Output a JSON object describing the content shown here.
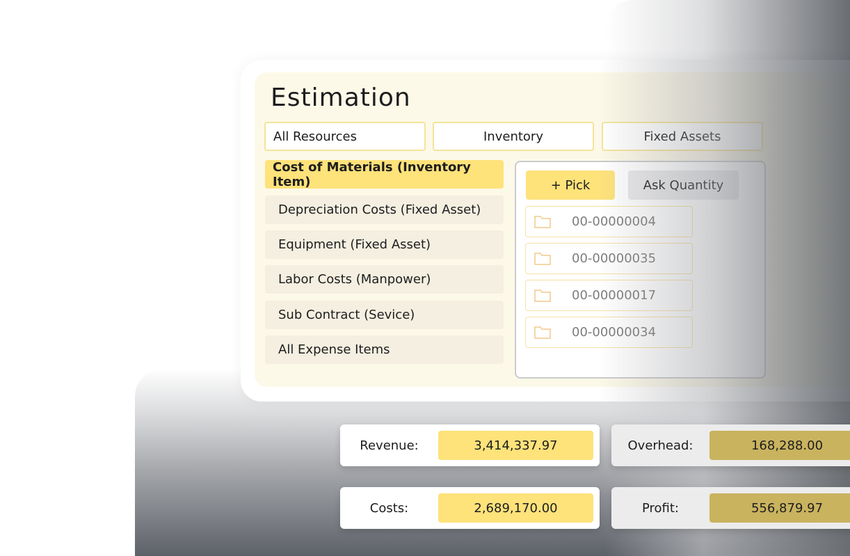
{
  "title": "Estimation",
  "tabs": [
    {
      "label": "All Resources"
    },
    {
      "label": "Inventory"
    },
    {
      "label": "Fixed Assets"
    }
  ],
  "categories": [
    {
      "label": "Cost of Materials (Inventory Item)",
      "active": true
    },
    {
      "label": "Depreciation Costs (Fixed Asset)"
    },
    {
      "label": "Equipment (Fixed Asset)"
    },
    {
      "label": "Labor Costs (Manpower)"
    },
    {
      "label": "Sub Contract (Sevice)"
    },
    {
      "label": "All Expense Items"
    }
  ],
  "actions": {
    "pick": "+ Pick",
    "ask_quantity": "Ask Quantity"
  },
  "records": [
    {
      "icon": "folder-icon",
      "code": "00-00000004"
    },
    {
      "icon": "folder-icon",
      "code": "00-00000035"
    },
    {
      "icon": "folder-icon",
      "code": "00-00000017"
    },
    {
      "icon": "folder-icon",
      "code": "00-00000034"
    }
  ],
  "summary": {
    "revenue": {
      "label": "Revenue:",
      "value": "3,414,337.97"
    },
    "overhead": {
      "label": "Overhead:",
      "value": "168,288.00"
    },
    "costs": {
      "label": "Costs:",
      "value": "2,689,170.00"
    },
    "profit": {
      "label": "Profit:",
      "value": "556,879.97"
    }
  },
  "colors": {
    "accent": "#fee27a",
    "panel": "#fdf9e8",
    "item": "#f4efe0"
  }
}
